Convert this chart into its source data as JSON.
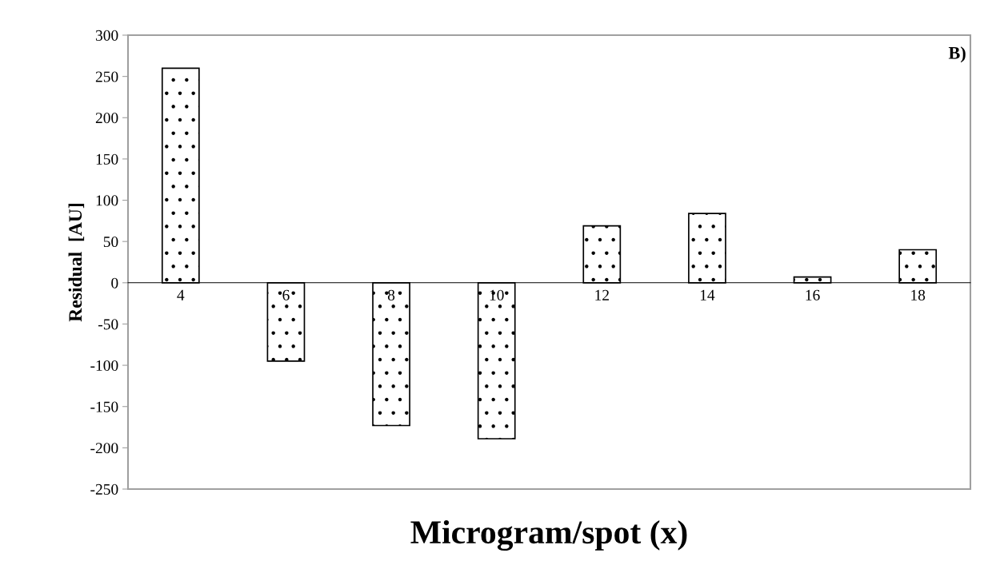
{
  "chart_data": {
    "type": "bar",
    "xlabel": "Microgram/spot (x)",
    "ylabel": "Residual  [AU]",
    "categories": [
      "4",
      "6",
      "8",
      "10",
      "12",
      "14",
      "16",
      "18"
    ],
    "values": [
      260,
      -95,
      -173,
      -189,
      69,
      84,
      7,
      40
    ],
    "color": "#000000",
    "ylim": [
      -250,
      300
    ],
    "yticks": [
      -250,
      -200,
      -150,
      -100,
      -50,
      0,
      50,
      100,
      150,
      200,
      250,
      300
    ],
    "grid": false,
    "legend": false,
    "annotations": [
      "B)"
    ]
  }
}
